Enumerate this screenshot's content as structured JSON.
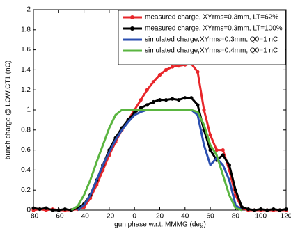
{
  "chart_data": {
    "type": "line",
    "xlabel": "gun phase w.r.t. MMMG (deg)",
    "ylabel": "bunch charge @ LOW.CT1 (nC)",
    "x": [
      -80,
      -75,
      -70,
      -65,
      -60,
      -55,
      -50,
      -45,
      -40,
      -35,
      -30,
      -25,
      -20,
      -15,
      -10,
      -5,
      0,
      5,
      10,
      15,
      20,
      25,
      30,
      35,
      40,
      45,
      50,
      55,
      60,
      65,
      70,
      75,
      80,
      85,
      90,
      95,
      100,
      105,
      110,
      115,
      120
    ],
    "series": [
      {
        "name": "measured charge, XYrms=0.3mm, LT=62%",
        "color": "#e8262a",
        "marker": true,
        "values": [
          0,
          0.01,
          0,
          0.01,
          0,
          0,
          0,
          0.01,
          0.03,
          0.12,
          0.25,
          0.4,
          0.55,
          0.68,
          0.8,
          0.9,
          1.0,
          1.1,
          1.2,
          1.28,
          1.35,
          1.4,
          1.43,
          1.44,
          1.45,
          1.46,
          1.38,
          1.0,
          0.75,
          0.6,
          0.6,
          0.4,
          0.15,
          0.02,
          0,
          0,
          0,
          0,
          0,
          0,
          0
        ]
      },
      {
        "name": "measured charge, XYrms=0.3mm, LT=100%",
        "color": "#000000",
        "marker": true,
        "values": [
          0.02,
          0.01,
          0.02,
          0,
          0,
          0.01,
          0,
          0.02,
          0.06,
          0.15,
          0.3,
          0.45,
          0.6,
          0.72,
          0.82,
          0.9,
          0.97,
          1.02,
          1.05,
          1.08,
          1.1,
          1.1,
          1.11,
          1.1,
          1.12,
          1.12,
          1.05,
          0.8,
          0.6,
          0.5,
          0.55,
          0.45,
          0.2,
          0.03,
          0.01,
          0,
          0.01,
          0,
          0.01,
          0,
          0.01
        ]
      },
      {
        "name": "simulated charge,XYrms=0.3mm, Q0=1 nC",
        "color": "#2b4fb0",
        "marker": false,
        "values": [
          null,
          null,
          null,
          null,
          null,
          null,
          null,
          0,
          0.05,
          0.15,
          0.3,
          0.45,
          0.58,
          0.7,
          0.8,
          0.88,
          0.95,
          0.98,
          1.0,
          1.0,
          1.0,
          1.0,
          1.0,
          1.0,
          1.0,
          1.0,
          0.95,
          0.65,
          0.45,
          0.52,
          0.45,
          0.3,
          0.05,
          0,
          null,
          null,
          null,
          null,
          null,
          null,
          null
        ]
      },
      {
        "name": "simulated charge,XYrms=0.4mm, Q0=1 nC",
        "color": "#5ab540",
        "marker": false,
        "values": [
          null,
          null,
          null,
          null,
          null,
          null,
          0,
          0.04,
          0.15,
          0.3,
          0.48,
          0.65,
          0.82,
          0.95,
          1.0,
          1.0,
          1.0,
          1.0,
          1.0,
          1.0,
          1.0,
          1.0,
          1.0,
          1.0,
          1.0,
          1.0,
          0.98,
          0.85,
          0.65,
          0.55,
          0.35,
          0.15,
          0.02,
          0,
          null,
          null,
          null,
          null,
          null,
          null,
          null
        ]
      }
    ],
    "xlim": [
      -80,
      120
    ],
    "xticks": [
      -80,
      -60,
      -40,
      -20,
      0,
      20,
      40,
      60,
      80,
      100,
      120
    ],
    "ylim": [
      0,
      2
    ],
    "yticks": [
      0,
      0.2,
      0.4,
      0.6,
      0.8,
      1,
      1.2,
      1.4,
      1.6,
      1.8,
      2
    ],
    "legend": "upper right"
  }
}
